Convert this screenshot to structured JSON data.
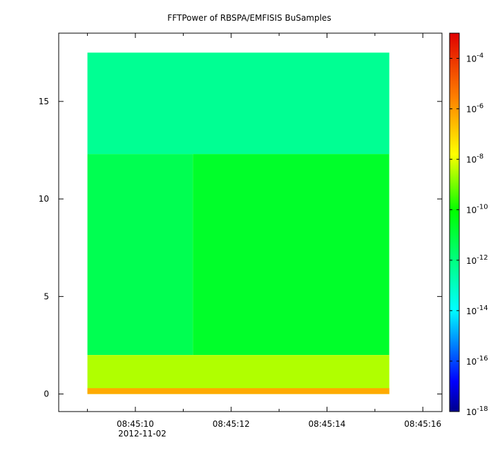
{
  "chart_data": {
    "type": "heatmap",
    "title": "FFTPower of RBSPA/EMFISIS  BuSamples",
    "xlabel": "",
    "ylabel": "",
    "x_axis": {
      "type": "time",
      "date_label": "2012-11-02",
      "range": [
        "08:45:08.4",
        "08:45:16.4"
      ],
      "major_ticks": [
        "08:45:10",
        "08:45:12",
        "08:45:14",
        "08:45:16"
      ],
      "minor_ticks": [
        "08:45:09",
        "08:45:11",
        "08:45:13",
        "08:45:15"
      ]
    },
    "y_axis": {
      "range": [
        -0.9,
        18.5
      ],
      "ticks": [
        0,
        5,
        10,
        15
      ],
      "tick_labels": [
        "0",
        "5",
        "10",
        "15"
      ]
    },
    "data_extent": {
      "time_start": "08:45:09.0",
      "time_end": "08:45:15.3",
      "y_min": 0,
      "y_max": 17.5
    },
    "colorbar": {
      "scale": "log",
      "range": [
        1e-18,
        0.001
      ],
      "colormap": "rainbow",
      "ticks": [
        {
          "base": "10",
          "exp": "-4",
          "value": 0.0001
        },
        {
          "base": "10",
          "exp": "-6",
          "value": 1e-06
        },
        {
          "base": "10",
          "exp": "-8",
          "value": 1e-08
        },
        {
          "base": "10",
          "exp": "-10",
          "value": 1e-10
        },
        {
          "base": "10",
          "exp": "-12",
          "value": 1e-12
        },
        {
          "base": "10",
          "exp": "-14",
          "value": 1e-14
        },
        {
          "base": "10",
          "exp": "-16",
          "value": 1e-16
        },
        {
          "base": "10",
          "exp": "-18",
          "value": 1e-18
        }
      ]
    },
    "regions": [
      {
        "description": "upper band",
        "y_range": [
          12.3,
          17.5
        ],
        "level_exp": -12.3
      },
      {
        "description": "left early interval",
        "time_range": [
          "08:45:09.0",
          "08:45:11.2"
        ],
        "y_range": [
          2.0,
          12.3
        ],
        "level_exp": -11.3
      },
      {
        "description": "main body",
        "time_range": [
          "08:45:11.2",
          "08:45:15.3"
        ],
        "y_range": [
          2.0,
          12.3
        ],
        "level_exp": -10.7
      },
      {
        "description": "low-frequency band",
        "y_range": [
          0,
          2.0
        ],
        "level_exp": -8.5
      },
      {
        "description": "baseline",
        "y_range": [
          0,
          0.3
        ],
        "level_exp": -6.3
      }
    ]
  }
}
